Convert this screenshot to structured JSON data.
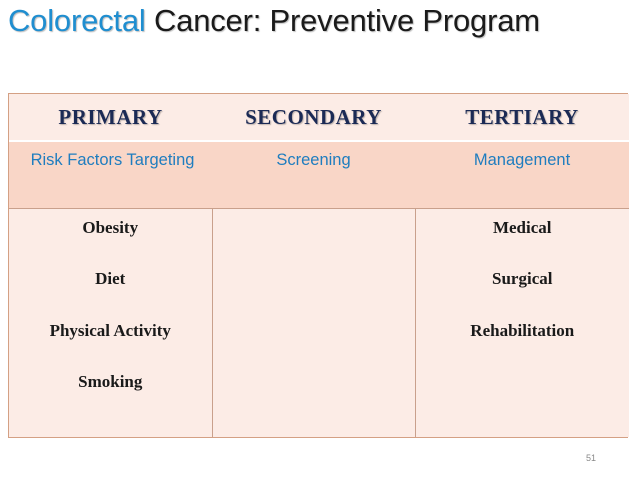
{
  "slide": {
    "title_accent": "Colorectal",
    "title_rest": " Cancer: Preventive Program",
    "page_number": "51"
  },
  "table": {
    "headers": [
      "PRIMARY",
      "SECONDARY",
      "TERTIARY"
    ],
    "subheaders": [
      "Risk Factors Targeting",
      "Screening",
      "Management"
    ],
    "primary_items": [
      "Obesity",
      "Diet",
      "Physical Activity",
      "Smoking"
    ],
    "tertiary_items": [
      "Medical",
      "Surgical",
      "Rehabilitation"
    ]
  },
  "colors": {
    "title_accent": "#1f8ed0",
    "header_text": "#1b2a55",
    "subheader_text": "#1f7dbf",
    "row_light": "#fcece6",
    "row_dark": "#f9d6c7",
    "border": "#c9a08c"
  }
}
